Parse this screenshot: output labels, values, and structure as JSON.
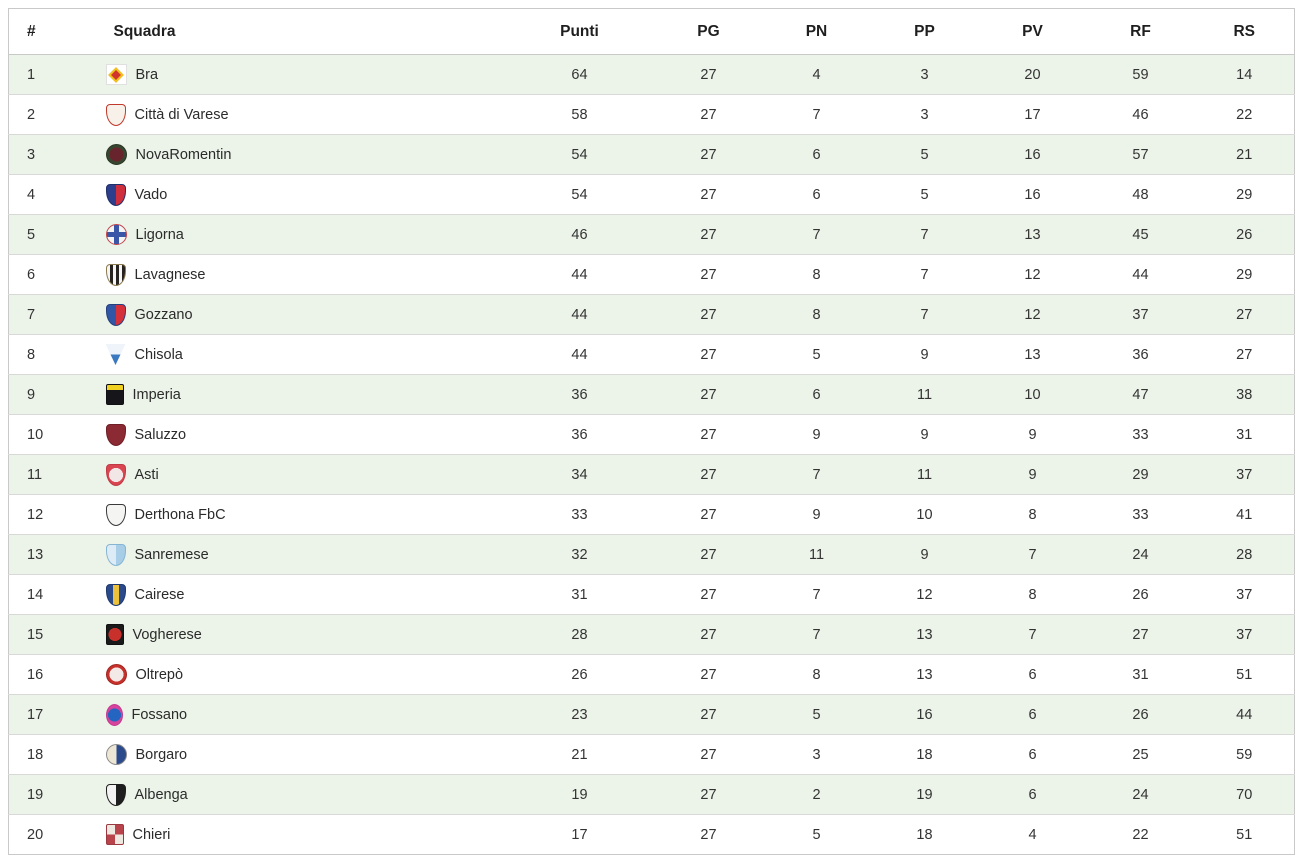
{
  "theme": {
    "row_alt_bg": "#ecf3e9",
    "row_bg": "#ffffff",
    "border_outer": "#c9c9c9",
    "border_row": "#d9d9d9",
    "header_text": "#1f1f1f",
    "cell_text": "#333333"
  },
  "table": {
    "columns": [
      {
        "key": "rank",
        "label": "#"
      },
      {
        "key": "team",
        "label": "Squadra"
      },
      {
        "key": "punti",
        "label": "Punti"
      },
      {
        "key": "pg",
        "label": "PG"
      },
      {
        "key": "pn",
        "label": "PN"
      },
      {
        "key": "pp",
        "label": "PP"
      },
      {
        "key": "pv",
        "label": "PV"
      },
      {
        "key": "rf",
        "label": "RF"
      },
      {
        "key": "rs",
        "label": "RS"
      }
    ],
    "rows": [
      {
        "rank": 1,
        "team": "Bra",
        "punti": 64,
        "pg": 27,
        "pn": 4,
        "pp": 3,
        "pv": 20,
        "rf": 59,
        "rs": 14,
        "badge": {
          "name": "bra-crest-icon",
          "shape": "diamond",
          "pattern": "solid",
          "colors": [
            "#d0342c",
            "#f0c419"
          ],
          "bg": "#ffffff"
        }
      },
      {
        "rank": 2,
        "team": "Città di Varese",
        "punti": 58,
        "pg": 27,
        "pn": 7,
        "pp": 3,
        "pv": 17,
        "rf": 46,
        "rs": 22,
        "badge": {
          "name": "citta-di-varese-crest-icon",
          "shape": "shield",
          "pattern": "solid",
          "colors": [
            "#f7f1ea"
          ],
          "border": "#c0392b"
        }
      },
      {
        "rank": 3,
        "team": "NovaRomentin",
        "punti": 54,
        "pg": 27,
        "pn": 6,
        "pp": 5,
        "pv": 16,
        "rf": 57,
        "rs": 21,
        "badge": {
          "name": "novaromentin-crest-icon",
          "shape": "circle",
          "pattern": "ring",
          "colors": [
            "#37472f",
            "#67242c"
          ],
          "border": "#2a3524"
        }
      },
      {
        "rank": 4,
        "team": "Vado",
        "punti": 54,
        "pg": 27,
        "pn": 6,
        "pp": 5,
        "pv": 16,
        "rf": 48,
        "rs": 29,
        "badge": {
          "name": "vado-crest-icon",
          "shape": "shield",
          "pattern": "split-v",
          "colors": [
            "#2c3e8c",
            "#cf2e3c"
          ],
          "border": "#20306a"
        }
      },
      {
        "rank": 5,
        "team": "Ligorna",
        "punti": 46,
        "pg": 27,
        "pn": 7,
        "pp": 7,
        "pv": 13,
        "rf": 45,
        "rs": 26,
        "badge": {
          "name": "ligorna-crest-icon",
          "shape": "circle",
          "pattern": "cross",
          "colors": [
            "#f4f4f4",
            "#3a57a7"
          ],
          "border": "#c04448"
        }
      },
      {
        "rank": 6,
        "team": "Lavagnese",
        "punti": 44,
        "pg": 27,
        "pn": 8,
        "pp": 7,
        "pv": 12,
        "rf": 44,
        "rs": 29,
        "badge": {
          "name": "lavagnese-crest-icon",
          "shape": "shield",
          "pattern": "stripes",
          "colors": [
            "#f5f5f5",
            "#26221f"
          ],
          "border": "#8a7a50"
        }
      },
      {
        "rank": 7,
        "team": "Gozzano",
        "punti": 44,
        "pg": 27,
        "pn": 8,
        "pp": 7,
        "pv": 12,
        "rf": 37,
        "rs": 27,
        "badge": {
          "name": "gozzano-crest-icon",
          "shape": "shield",
          "pattern": "split-v",
          "colors": [
            "#3156a5",
            "#d6303a"
          ],
          "border": "#26417e"
        }
      },
      {
        "rank": 8,
        "team": "Chisola",
        "punti": 44,
        "pg": 27,
        "pn": 5,
        "pp": 9,
        "pv": 13,
        "rf": 36,
        "rs": 27,
        "badge": {
          "name": "chisola-crest-icon",
          "shape": "triangle",
          "pattern": "split-h",
          "colors": [
            "#eef4fa",
            "#3c78c0"
          ]
        }
      },
      {
        "rank": 9,
        "team": "Imperia",
        "punti": 36,
        "pg": 27,
        "pn": 6,
        "pp": 11,
        "pv": 10,
        "rf": 47,
        "rs": 38,
        "badge": {
          "name": "imperia-crest-icon",
          "shape": "square",
          "pattern": "top-band",
          "colors": [
            "#15151a",
            "#f0d020"
          ],
          "border": "#101014"
        }
      },
      {
        "rank": 10,
        "team": "Saluzzo",
        "punti": 36,
        "pg": 27,
        "pn": 9,
        "pp": 9,
        "pv": 9,
        "rf": 33,
        "rs": 31,
        "badge": {
          "name": "saluzzo-crest-icon",
          "shape": "shield",
          "pattern": "solid",
          "colors": [
            "#8c2a33"
          ],
          "border": "#6e1f28"
        }
      },
      {
        "rank": 11,
        "team": "Asti",
        "punti": 34,
        "pg": 27,
        "pn": 7,
        "pp": 11,
        "pv": 9,
        "rf": 29,
        "rs": 37,
        "badge": {
          "name": "asti-crest-icon",
          "shape": "shield",
          "pattern": "ring",
          "colors": [
            "#d94550",
            "#f3e6e6"
          ],
          "border": "#c03a45"
        }
      },
      {
        "rank": 12,
        "team": "Derthona FbC",
        "punti": 33,
        "pg": 27,
        "pn": 9,
        "pp": 10,
        "pv": 8,
        "rf": 33,
        "rs": 41,
        "badge": {
          "name": "derthona-fbc-crest-icon",
          "shape": "shield",
          "pattern": "solid",
          "colors": [
            "#f4f4f2"
          ],
          "border": "#3a3a3a"
        }
      },
      {
        "rank": 13,
        "team": "Sanremese",
        "punti": 32,
        "pg": 27,
        "pn": 11,
        "pp": 9,
        "pv": 7,
        "rf": 24,
        "rs": 28,
        "badge": {
          "name": "sanremese-crest-icon",
          "shape": "shield",
          "pattern": "split-v",
          "colors": [
            "#dcebf5",
            "#a8cde6"
          ],
          "border": "#86b5d4"
        }
      },
      {
        "rank": 14,
        "team": "Cairese",
        "punti": 31,
        "pg": 27,
        "pn": 7,
        "pp": 12,
        "pv": 8,
        "rf": 26,
        "rs": 37,
        "badge": {
          "name": "cairese-crest-icon",
          "shape": "shield",
          "pattern": "center-band",
          "colors": [
            "#2a4a8c",
            "#ecc23c"
          ],
          "border": "#1f3a70"
        }
      },
      {
        "rank": 15,
        "team": "Vogherese",
        "punti": 28,
        "pg": 27,
        "pn": 7,
        "pp": 13,
        "pv": 7,
        "rf": 27,
        "rs": 37,
        "badge": {
          "name": "vogherese-crest-icon",
          "shape": "square",
          "pattern": "ring",
          "colors": [
            "#1a1a1a",
            "#c8312b"
          ],
          "border": "#111111"
        }
      },
      {
        "rank": 16,
        "team": "Oltrepò",
        "punti": 26,
        "pg": 27,
        "pn": 8,
        "pp": 13,
        "pv": 6,
        "rf": 31,
        "rs": 51,
        "badge": {
          "name": "oltrepo-crest-icon",
          "shape": "circle",
          "pattern": "ring",
          "colors": [
            "#c8312b",
            "#f3e9e7"
          ],
          "border": "#a02620"
        }
      },
      {
        "rank": 17,
        "team": "Fossano",
        "punti": 23,
        "pg": 27,
        "pn": 5,
        "pp": 16,
        "pv": 6,
        "rf": 26,
        "rs": 44,
        "badge": {
          "name": "fossano-crest-icon",
          "shape": "oval",
          "pattern": "ring",
          "colors": [
            "#d8439e",
            "#2565c2"
          ],
          "border": "#c23a8e"
        }
      },
      {
        "rank": 18,
        "team": "Borgaro",
        "punti": 21,
        "pg": 27,
        "pn": 3,
        "pp": 18,
        "pv": 6,
        "rf": 25,
        "rs": 59,
        "badge": {
          "name": "borgaro-crest-icon",
          "shape": "circle",
          "pattern": "split-v",
          "colors": [
            "#eee6d4",
            "#2a4a8c"
          ],
          "border": "#8a8a8a"
        }
      },
      {
        "rank": 19,
        "team": "Albenga",
        "punti": 19,
        "pg": 27,
        "pn": 2,
        "pp": 19,
        "pv": 6,
        "rf": 24,
        "rs": 70,
        "badge": {
          "name": "albenga-crest-icon",
          "shape": "shield",
          "pattern": "split-v",
          "colors": [
            "#f2f2f2",
            "#1e1e1e"
          ],
          "border": "#1e1e1e"
        }
      },
      {
        "rank": 20,
        "team": "Chieri",
        "punti": 17,
        "pg": 27,
        "pn": 5,
        "pp": 18,
        "pv": 4,
        "rf": 22,
        "rs": 51,
        "badge": {
          "name": "chieri-crest-icon",
          "shape": "square",
          "pattern": "quarters",
          "colors": [
            "#b8434a",
            "#efe8e0"
          ],
          "border": "#9a3a40"
        }
      }
    ]
  }
}
